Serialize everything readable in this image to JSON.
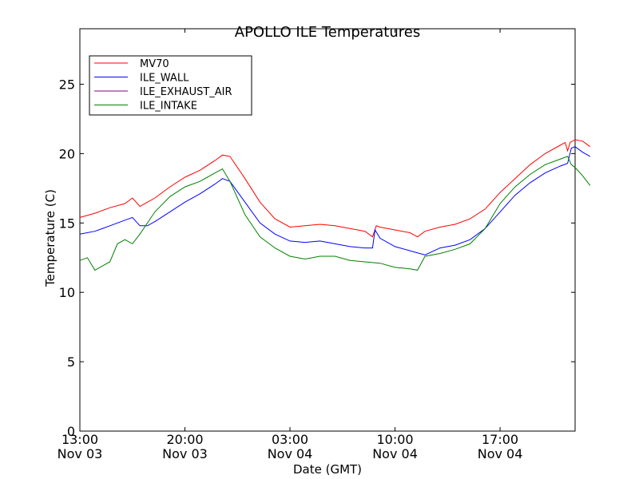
{
  "chart_data": {
    "type": "line",
    "title": "APOLLO ILE Temperatures",
    "xlabel": "Date (GMT)",
    "ylabel": "Temperature (C)",
    "xlim": [
      "2013-11-03 13:00",
      "2013-11-04 22:00"
    ],
    "ylim": [
      0,
      29
    ],
    "yticks": [
      0,
      5,
      10,
      15,
      20,
      25
    ],
    "xticks": [
      {
        "time": "2013-11-03 13:00",
        "line1": "13:00",
        "line2": "Nov 03"
      },
      {
        "time": "2013-11-03 20:00",
        "line1": "20:00",
        "line2": "Nov 03"
      },
      {
        "time": "2013-11-04 03:00",
        "line1": "03:00",
        "line2": "Nov 04"
      },
      {
        "time": "2013-11-04 10:00",
        "line1": "10:00",
        "line2": "Nov 04"
      },
      {
        "time": "2013-11-04 17:00",
        "line1": "17:00",
        "line2": "Nov 04"
      }
    ],
    "grid": false,
    "legend_position": "top-left",
    "series": [
      {
        "name": "MV70",
        "color": "#ff0000",
        "points": [
          [
            "2013-11-03 13:00",
            15.4
          ],
          [
            "2013-11-03 14:00",
            15.7
          ],
          [
            "2013-11-03 15:00",
            16.1
          ],
          [
            "2013-11-03 16:00",
            16.4
          ],
          [
            "2013-11-03 16:30",
            16.8
          ],
          [
            "2013-11-03 17:00",
            16.2
          ],
          [
            "2013-11-03 18:00",
            16.8
          ],
          [
            "2013-11-03 19:00",
            17.6
          ],
          [
            "2013-11-03 20:00",
            18.3
          ],
          [
            "2013-11-03 21:00",
            18.8
          ],
          [
            "2013-11-03 22:00",
            19.5
          ],
          [
            "2013-11-03 22:30",
            19.9
          ],
          [
            "2013-11-03 23:00",
            19.8
          ],
          [
            "2013-11-04 00:00",
            18.2
          ],
          [
            "2013-11-04 01:00",
            16.5
          ],
          [
            "2013-11-04 02:00",
            15.3
          ],
          [
            "2013-11-04 03:00",
            14.7
          ],
          [
            "2013-11-04 04:00",
            14.8
          ],
          [
            "2013-11-04 05:00",
            14.9
          ],
          [
            "2013-11-04 06:00",
            14.8
          ],
          [
            "2013-11-04 07:00",
            14.6
          ],
          [
            "2013-11-04 08:00",
            14.4
          ],
          [
            "2013-11-04 08:30",
            14.0
          ],
          [
            "2013-11-04 08:45",
            14.8
          ],
          [
            "2013-11-04 09:00",
            14.7
          ],
          [
            "2013-11-04 10:00",
            14.5
          ],
          [
            "2013-11-04 11:00",
            14.3
          ],
          [
            "2013-11-04 11:30",
            14.0
          ],
          [
            "2013-11-04 12:00",
            14.4
          ],
          [
            "2013-11-04 13:00",
            14.7
          ],
          [
            "2013-11-04 14:00",
            14.9
          ],
          [
            "2013-11-04 15:00",
            15.3
          ],
          [
            "2013-11-04 16:00",
            16.0
          ],
          [
            "2013-11-04 17:00",
            17.2
          ],
          [
            "2013-11-04 18:00",
            18.2
          ],
          [
            "2013-11-04 19:00",
            19.2
          ],
          [
            "2013-11-04 20:00",
            20.0
          ],
          [
            "2013-11-04 21:00",
            20.6
          ],
          [
            "2013-11-04 21:20",
            20.8
          ],
          [
            "2013-11-04 21:30",
            20.2
          ],
          [
            "2013-11-04 21:40",
            20.8
          ],
          [
            "2013-11-04 22:00",
            21.0
          ],
          [
            "2013-11-04 22:30",
            20.9
          ],
          [
            "2013-11-04 23:00",
            20.5
          ]
        ]
      },
      {
        "name": "ILE_WALL",
        "color": "#0000ff",
        "points": [
          [
            "2013-11-03 13:00",
            14.2
          ],
          [
            "2013-11-03 14:00",
            14.4
          ],
          [
            "2013-11-03 15:00",
            14.8
          ],
          [
            "2013-11-03 16:00",
            15.2
          ],
          [
            "2013-11-03 16:30",
            15.4
          ],
          [
            "2013-11-03 17:00",
            14.8
          ],
          [
            "2013-11-03 17:30",
            14.8
          ],
          [
            "2013-11-03 18:00",
            15.1
          ],
          [
            "2013-11-03 19:00",
            15.8
          ],
          [
            "2013-11-03 20:00",
            16.5
          ],
          [
            "2013-11-03 21:00",
            17.1
          ],
          [
            "2013-11-03 22:00",
            17.8
          ],
          [
            "2013-11-03 22:30",
            18.2
          ],
          [
            "2013-11-03 23:00",
            18.0
          ],
          [
            "2013-11-04 00:00",
            16.5
          ],
          [
            "2013-11-04 01:00",
            15.0
          ],
          [
            "2013-11-04 02:00",
            14.2
          ],
          [
            "2013-11-04 03:00",
            13.7
          ],
          [
            "2013-11-04 04:00",
            13.6
          ],
          [
            "2013-11-04 05:00",
            13.7
          ],
          [
            "2013-11-04 06:00",
            13.5
          ],
          [
            "2013-11-04 07:00",
            13.3
          ],
          [
            "2013-11-04 08:00",
            13.2
          ],
          [
            "2013-11-04 08:30",
            13.2
          ],
          [
            "2013-11-04 08:40",
            14.5
          ],
          [
            "2013-11-04 09:00",
            13.9
          ],
          [
            "2013-11-04 10:00",
            13.3
          ],
          [
            "2013-11-04 11:00",
            13.0
          ],
          [
            "2013-11-04 12:00",
            12.7
          ],
          [
            "2013-11-04 13:00",
            13.2
          ],
          [
            "2013-11-04 14:00",
            13.4
          ],
          [
            "2013-11-04 15:00",
            13.8
          ],
          [
            "2013-11-04 16:00",
            14.6
          ],
          [
            "2013-11-04 17:00",
            15.8
          ],
          [
            "2013-11-04 18:00",
            17.0
          ],
          [
            "2013-11-04 19:00",
            17.9
          ],
          [
            "2013-11-04 20:00",
            18.6
          ],
          [
            "2013-11-04 21:00",
            19.1
          ],
          [
            "2013-11-04 21:30",
            19.3
          ],
          [
            "2013-11-04 21:45",
            20.4
          ],
          [
            "2013-11-04 22:00",
            20.5
          ],
          [
            "2013-11-04 22:30",
            20.1
          ],
          [
            "2013-11-04 23:00",
            19.8
          ]
        ]
      },
      {
        "name": "ILE_EXHAUST_AIR",
        "color": "#800080",
        "points": []
      },
      {
        "name": "ILE_INTAKE",
        "color": "#008000",
        "points": [
          [
            "2013-11-03 13:00",
            12.3
          ],
          [
            "2013-11-03 13:30",
            12.5
          ],
          [
            "2013-11-03 14:00",
            11.6
          ],
          [
            "2013-11-03 15:00",
            12.2
          ],
          [
            "2013-11-03 15:30",
            13.5
          ],
          [
            "2013-11-03 16:00",
            13.8
          ],
          [
            "2013-11-03 16:30",
            13.5
          ],
          [
            "2013-11-03 17:00",
            14.2
          ],
          [
            "2013-11-03 18:00",
            15.8
          ],
          [
            "2013-11-03 19:00",
            16.9
          ],
          [
            "2013-11-03 20:00",
            17.6
          ],
          [
            "2013-11-03 21:00",
            18.0
          ],
          [
            "2013-11-03 22:00",
            18.6
          ],
          [
            "2013-11-03 22:30",
            18.9
          ],
          [
            "2013-11-03 23:00",
            18.0
          ],
          [
            "2013-11-04 00:00",
            15.6
          ],
          [
            "2013-11-04 01:00",
            14.0
          ],
          [
            "2013-11-04 02:00",
            13.2
          ],
          [
            "2013-11-04 03:00",
            12.6
          ],
          [
            "2013-11-04 04:00",
            12.4
          ],
          [
            "2013-11-04 05:00",
            12.6
          ],
          [
            "2013-11-04 06:00",
            12.6
          ],
          [
            "2013-11-04 07:00",
            12.3
          ],
          [
            "2013-11-04 08:00",
            12.2
          ],
          [
            "2013-11-04 09:00",
            12.1
          ],
          [
            "2013-11-04 10:00",
            11.8
          ],
          [
            "2013-11-04 11:00",
            11.7
          ],
          [
            "2013-11-04 11:30",
            11.6
          ],
          [
            "2013-11-04 12:00",
            12.6
          ],
          [
            "2013-11-04 13:00",
            12.8
          ],
          [
            "2013-11-04 14:00",
            13.1
          ],
          [
            "2013-11-04 15:00",
            13.5
          ],
          [
            "2013-11-04 16:00",
            14.6
          ],
          [
            "2013-11-04 17:00",
            16.4
          ],
          [
            "2013-11-04 18:00",
            17.6
          ],
          [
            "2013-11-04 19:00",
            18.5
          ],
          [
            "2013-11-04 20:00",
            19.2
          ],
          [
            "2013-11-04 21:00",
            19.6
          ],
          [
            "2013-11-04 21:30",
            19.8
          ],
          [
            "2013-11-04 21:45",
            19.2
          ],
          [
            "2013-11-04 22:00",
            19.0
          ],
          [
            "2013-11-04 22:30",
            18.4
          ],
          [
            "2013-11-04 23:00",
            17.7
          ]
        ]
      }
    ]
  }
}
